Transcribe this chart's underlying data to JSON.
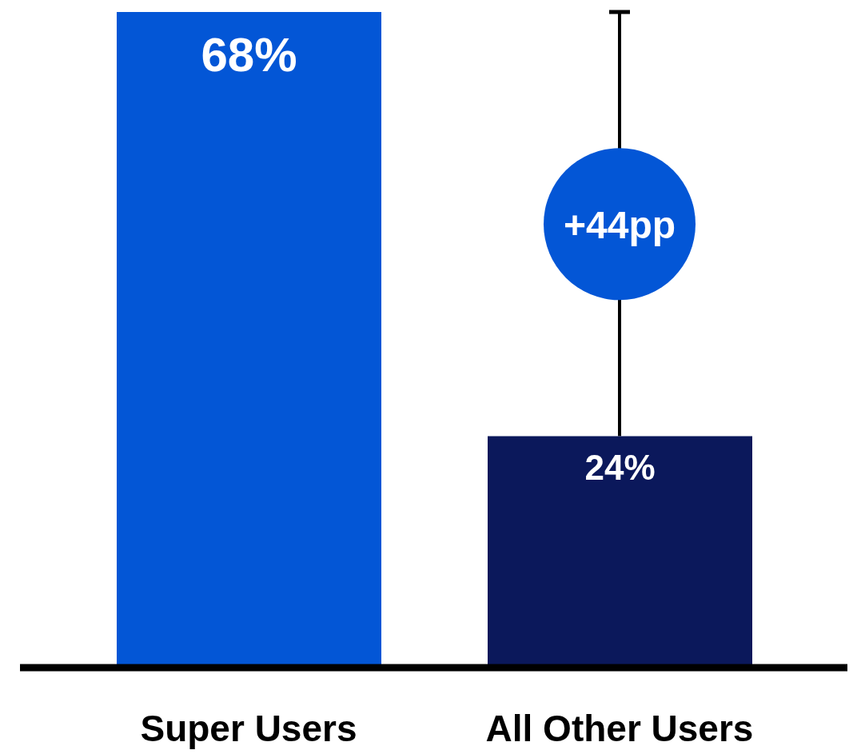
{
  "chart_data": {
    "type": "bar",
    "categories": [
      "Super Users",
      "All Other Users"
    ],
    "values": [
      68,
      24
    ],
    "colors": [
      "#0356d6",
      "#0b185b"
    ],
    "value_labels": [
      "68%",
      "24%"
    ],
    "ylim": [
      0,
      68
    ],
    "tick_labels": "x",
    "annotations": [
      "+44pp"
    ]
  }
}
